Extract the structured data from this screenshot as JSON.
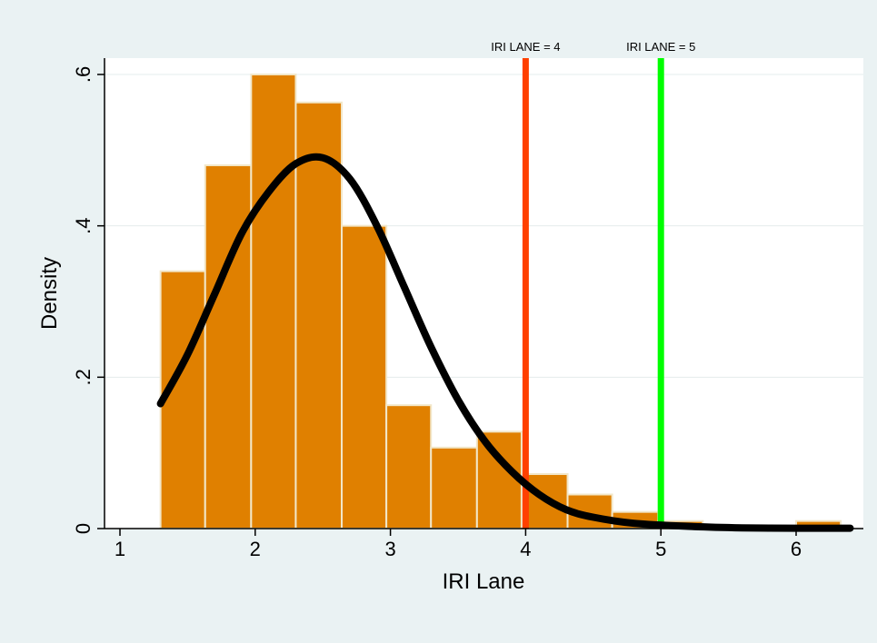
{
  "chart_data": {
    "type": "bar",
    "subtype": "histogram with kernel density curve",
    "title": "",
    "xlabel": "IRI Lane",
    "ylabel": "Density",
    "xlim": [
      0.9,
      6.5
    ],
    "ylim": [
      0,
      0.62
    ],
    "x_ticks": [
      1,
      2,
      3,
      4,
      5,
      6
    ],
    "y_ticks": [
      0,
      0.2,
      0.4,
      0.6
    ],
    "y_tick_labels": [
      "0",
      ".2",
      ".4",
      ".6"
    ],
    "grid": true,
    "bar_color": "#e08000",
    "bars": [
      {
        "x0": 1.3,
        "x1": 1.63,
        "value": 0.34
      },
      {
        "x0": 1.63,
        "x1": 1.97,
        "value": 0.48
      },
      {
        "x0": 1.97,
        "x1": 2.3,
        "value": 0.6
      },
      {
        "x0": 2.3,
        "x1": 2.64,
        "value": 0.563
      },
      {
        "x0": 2.64,
        "x1": 2.97,
        "value": 0.4
      },
      {
        "x0": 2.97,
        "x1": 3.3,
        "value": 0.163
      },
      {
        "x0": 3.3,
        "x1": 3.64,
        "value": 0.107
      },
      {
        "x0": 3.64,
        "x1": 3.97,
        "value": 0.128
      },
      {
        "x0": 3.97,
        "x1": 4.31,
        "value": 0.072
      },
      {
        "x0": 4.31,
        "x1": 4.64,
        "value": 0.045
      },
      {
        "x0": 4.64,
        "x1": 4.98,
        "value": 0.022
      },
      {
        "x0": 4.98,
        "x1": 5.31,
        "value": 0.01
      },
      {
        "x0": 6.0,
        "x1": 6.33,
        "value": 0.01
      }
    ],
    "density_curve": {
      "color": "#000000",
      "x": [
        1.3,
        1.5,
        1.7,
        1.9,
        2.1,
        2.3,
        2.5,
        2.7,
        2.9,
        3.1,
        3.3,
        3.5,
        3.7,
        3.9,
        4.1,
        4.3,
        4.5,
        4.8,
        5.2,
        5.6,
        6.0,
        6.4
      ],
      "y": [
        0.165,
        0.23,
        0.31,
        0.39,
        0.445,
        0.482,
        0.49,
        0.462,
        0.4,
        0.32,
        0.24,
        0.17,
        0.115,
        0.075,
        0.045,
        0.025,
        0.015,
        0.007,
        0.003,
        0.001,
        0.0005,
        0.0005
      ]
    },
    "reference_lines": [
      {
        "x": 4,
        "label": "IRI LANE = 4",
        "color": "#ff4000"
      },
      {
        "x": 5,
        "label": "IRI LANE = 5",
        "color": "#00ff00"
      }
    ]
  },
  "background": {
    "outer": "#eaf2f3",
    "plot": "#ffffff"
  }
}
